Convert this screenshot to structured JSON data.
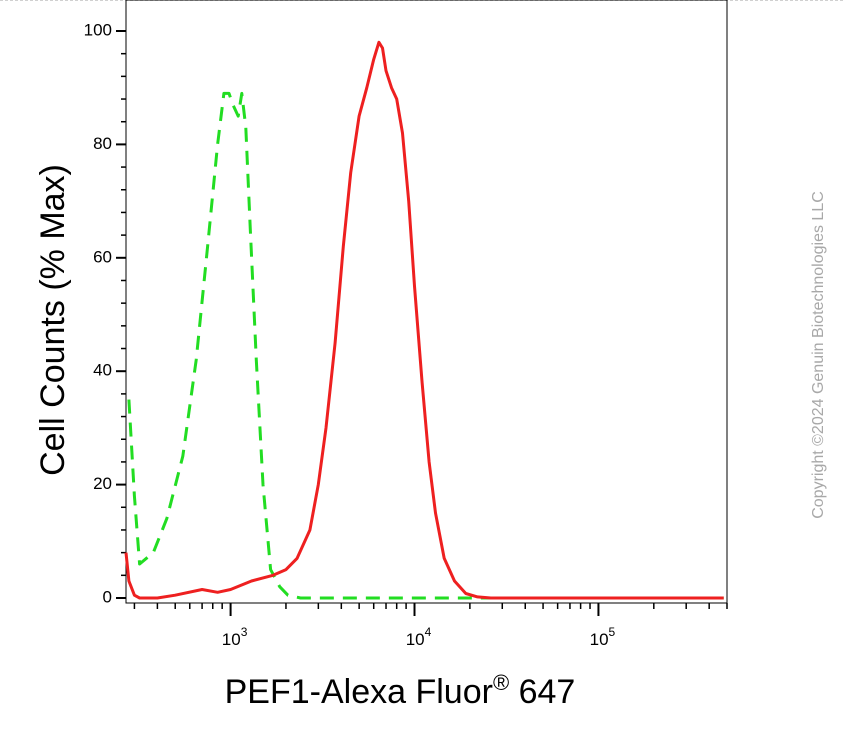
{
  "chart_data": {
    "type": "line",
    "xlabel": "PEF1-Alexa Fluor",
    "xlabel_superscript": "®",
    "xlabel_suffix": " 647",
    "ylabel": "Cell Counts (% Max)",
    "x_scale": "log",
    "xlim": [
      270,
      500000
    ],
    "ylim": [
      0,
      100
    ],
    "y_ticks": [
      {
        "value": 0,
        "label": "0"
      },
      {
        "value": 20,
        "label": "20"
      },
      {
        "value": 40,
        "label": "40"
      },
      {
        "value": 60,
        "label": "60"
      },
      {
        "value": 80,
        "label": "80"
      },
      {
        "value": 100,
        "label": "100"
      }
    ],
    "x_ticks": [
      {
        "value": 1000,
        "base": "10",
        "exp": "3"
      },
      {
        "value": 10000,
        "base": "10",
        "exp": "4"
      },
      {
        "value": 100000,
        "base": "10",
        "exp": "5"
      }
    ],
    "grid": false,
    "legend": "none",
    "series": [
      {
        "color": "#22dd22",
        "style": "dashed",
        "x": [
          280,
          300,
          320,
          380,
          450,
          550,
          650,
          750,
          850,
          920,
          980,
          1030,
          1100,
          1150,
          1210,
          1280,
          1380,
          1500,
          1650,
          1850,
          2050,
          2400,
          3000,
          5000,
          10000,
          100000,
          480000
        ],
        "y": [
          35,
          18,
          6,
          8,
          14,
          25,
          42,
          62,
          80,
          89,
          89,
          87,
          85,
          89,
          83,
          65,
          42,
          20,
          5,
          2,
          0.5,
          0,
          0,
          0,
          0,
          0,
          0
        ]
      },
      {
        "color": "#ee2020",
        "style": "solid",
        "x": [
          270,
          280,
          300,
          320,
          400,
          500,
          700,
          850,
          1000,
          1300,
          1700,
          2000,
          2300,
          2700,
          3000,
          3300,
          3700,
          4100,
          4500,
          5000,
          5500,
          6000,
          6400,
          6700,
          7000,
          7500,
          8000,
          8600,
          9300,
          10000,
          11000,
          12000,
          13000,
          14500,
          16500,
          19000,
          22000,
          26000,
          40000,
          100000,
          480000
        ],
        "y": [
          8,
          3,
          0.5,
          0,
          0,
          0.5,
          1.5,
          1,
          1.5,
          3,
          4,
          5,
          7,
          12,
          20,
          30,
          45,
          62,
          75,
          85,
          90,
          95,
          98,
          97,
          93,
          90,
          88,
          82,
          70,
          55,
          38,
          24,
          15,
          7,
          3,
          0.8,
          0.2,
          0,
          0,
          0,
          0
        ]
      }
    ]
  },
  "watermark": "Copyright ©2024 Genuin Biotechnologies LLC"
}
